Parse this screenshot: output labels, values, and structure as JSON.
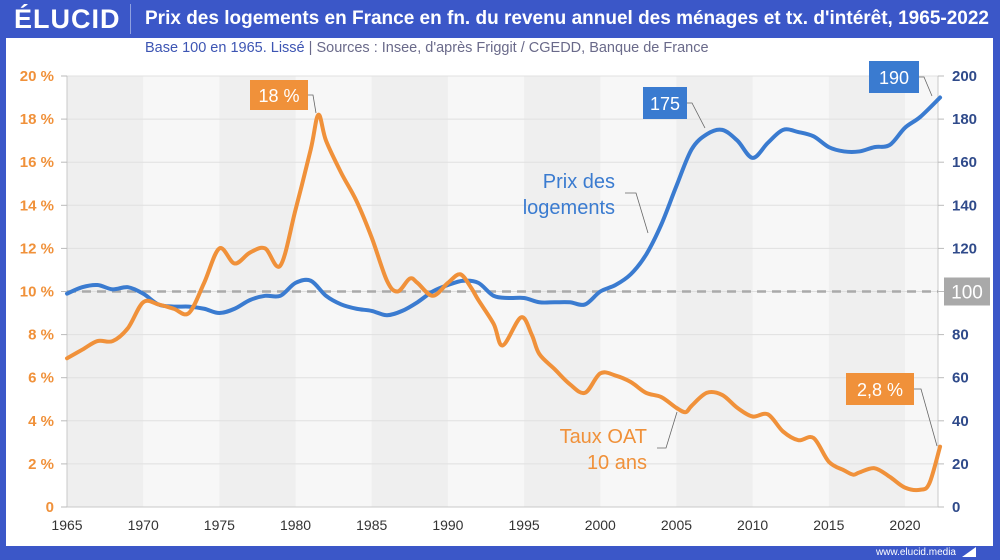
{
  "header": {
    "logo": "ÉLUCID",
    "title": "Prix des logements en France en fn. du revenu annuel des ménages et tx. d'intérêt, 1965-2022"
  },
  "subtitle": {
    "base": "Base 100 en 1965. Lissé",
    "separator": "|",
    "sources": "Sources : Insee, d'après Friggit / CGEDD, Banque de France"
  },
  "footer": {
    "url": "www.elucid.media"
  },
  "colors": {
    "brand": "#3b57c8",
    "price": "#3a7bd0",
    "rate": "#f0913a",
    "reference": "#aaaaaa",
    "left_axis_text": "#f0913a",
    "right_axis_text": "#2f4a8a"
  },
  "chart_data": {
    "type": "line",
    "title": "Prix des logements en France en fn. du revenu annuel des ménages et tx. d'intérêt, 1965-2022",
    "xlim": [
      1965,
      2022.5
    ],
    "x_ticks": [
      "1965",
      "1970",
      "1975",
      "1980",
      "1985",
      "1990",
      "1995",
      "2000",
      "2005",
      "2010",
      "2015",
      "2020"
    ],
    "y_left": {
      "label": "Taux OAT 10 ans (%)",
      "lim": [
        0,
        20
      ],
      "ticks": [
        "0",
        "2 %",
        "4 %",
        "6 %",
        "8 %",
        "10 %",
        "12 %",
        "14 %",
        "16 %",
        "18 %",
        "20 %"
      ]
    },
    "y_right": {
      "label": "Prix des logements (base 100)",
      "lim": [
        0,
        200
      ],
      "ticks": [
        "0",
        "20",
        "40",
        "60",
        "80",
        "100",
        "120",
        "140",
        "160",
        "180",
        "200"
      ]
    },
    "reference_line": {
      "axis": "right",
      "value": 100,
      "label": "100",
      "style": "dashed"
    },
    "grid": true,
    "series": [
      {
        "name": "Prix des logements",
        "axis": "right",
        "label_lines": [
          "Prix des",
          "logements"
        ],
        "x": [
          1965,
          1966,
          1967,
          1968,
          1969,
          1970,
          1971,
          1972,
          1973,
          1974,
          1975,
          1976,
          1977,
          1978,
          1979,
          1980,
          1981,
          1982,
          1983,
          1984,
          1985,
          1986,
          1987,
          1988,
          1989,
          1990,
          1991,
          1992,
          1993,
          1994,
          1995,
          1996,
          1997,
          1998,
          1999,
          2000,
          2001,
          2002,
          2003,
          2004,
          2005,
          2006,
          2007,
          2008,
          2009,
          2010,
          2011,
          2012,
          2013,
          2014,
          2015,
          2016,
          2017,
          2018,
          2019,
          2020,
          2021,
          2022.3
        ],
        "values": [
          99,
          102,
          103,
          101,
          102,
          99,
          94,
          93,
          93,
          92,
          90,
          92,
          96,
          98,
          98,
          104,
          105,
          98,
          94,
          92,
          91,
          89,
          91,
          95,
          100,
          103,
          105,
          104,
          98,
          97,
          97,
          95,
          95,
          95,
          94,
          100,
          103,
          108,
          117,
          131,
          149,
          166,
          173,
          175,
          170,
          162,
          169,
          175,
          174,
          172,
          167,
          165,
          165,
          167,
          168,
          176,
          181,
          190
        ]
      },
      {
        "name": "Taux OAT 10 ans",
        "axis": "left",
        "label_lines": [
          "Taux OAT",
          "10 ans"
        ],
        "x": [
          1965,
          1966,
          1967,
          1968,
          1969,
          1970,
          1971,
          1972,
          1973,
          1974,
          1975,
          1976,
          1977,
          1978,
          1979,
          1980,
          1981,
          1981.5,
          1982,
          1983,
          1984,
          1985,
          1986,
          1986.7,
          1987.5,
          1988,
          1989,
          1990,
          1990.8,
          1991.5,
          1992,
          1993,
          1993.6,
          1994.8,
          1995.5,
          1996,
          1997,
          1998,
          1999,
          2000,
          2001,
          2002,
          2003,
          2004,
          2005,
          2005.6,
          2006,
          2007,
          2008,
          2009,
          2010,
          2011,
          2012,
          2013,
          2014,
          2015,
          2016,
          2016.6,
          2017,
          2018,
          2019,
          2020,
          2021,
          2021.6,
          2022.3
        ],
        "values": [
          6.9,
          7.3,
          7.7,
          7.7,
          8.3,
          9.5,
          9.4,
          9.2,
          9.0,
          10.4,
          12.0,
          11.3,
          11.8,
          12.0,
          11.2,
          13.8,
          16.6,
          18.2,
          17.0,
          15.5,
          14.2,
          12.5,
          10.5,
          10.0,
          10.6,
          10.4,
          9.8,
          10.4,
          10.8,
          10.2,
          9.6,
          8.5,
          7.5,
          8.8,
          8.0,
          7.1,
          6.4,
          5.7,
          5.3,
          6.2,
          6.1,
          5.8,
          5.3,
          5.1,
          4.6,
          4.4,
          4.7,
          5.3,
          5.2,
          4.6,
          4.2,
          4.3,
          3.5,
          3.1,
          3.2,
          2.1,
          1.7,
          1.5,
          1.6,
          1.8,
          1.4,
          0.9,
          0.8,
          1.1,
          2.8
        ]
      }
    ],
    "annotations": [
      {
        "text": "18 %",
        "series": "Taux OAT 10 ans",
        "x": 1981.5,
        "value": 18.2
      },
      {
        "text": "175",
        "series": "Prix des logements",
        "x": 2008,
        "value": 175
      },
      {
        "text": "190",
        "series": "Prix des logements",
        "x": 2022.3,
        "value": 190
      },
      {
        "text": "2,8 %",
        "series": "Taux OAT 10 ans",
        "x": 2022.3,
        "value": 2.8
      }
    ]
  }
}
